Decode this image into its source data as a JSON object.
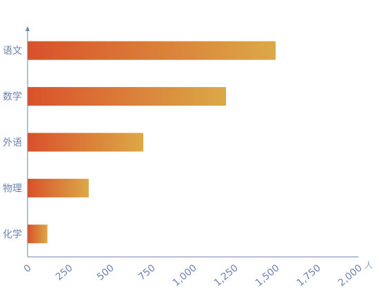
{
  "chart_data": {
    "type": "bar",
    "orientation": "horizontal",
    "categories": [
      "语文",
      "数学",
      "外语",
      "物理",
      "化学"
    ],
    "values": [
      1500,
      1200,
      700,
      370,
      120
    ],
    "x_ticks": [
      "0",
      "250",
      "500",
      "750",
      "1,000",
      "1,250",
      "1,500",
      "1,750",
      "2,000"
    ],
    "xlim": [
      0,
      2000
    ],
    "x_unit": "人",
    "grid": false,
    "bar_gradient": {
      "start": "#d9512b",
      "end": "#dba946"
    },
    "axis_color": "#6c83b3"
  }
}
